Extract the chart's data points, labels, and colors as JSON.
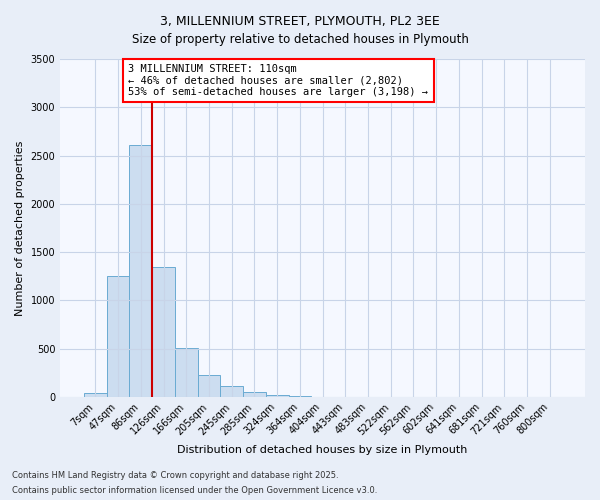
{
  "title1": "3, MILLENNIUM STREET, PLYMOUTH, PL2 3EE",
  "title2": "Size of property relative to detached houses in Plymouth",
  "xlabel": "Distribution of detached houses by size in Plymouth",
  "ylabel": "Number of detached properties",
  "categories": [
    "7sqm",
    "47sqm",
    "86sqm",
    "126sqm",
    "166sqm",
    "205sqm",
    "245sqm",
    "285sqm",
    "324sqm",
    "364sqm",
    "404sqm",
    "443sqm",
    "483sqm",
    "522sqm",
    "562sqm",
    "602sqm",
    "641sqm",
    "681sqm",
    "721sqm",
    "760sqm",
    "800sqm"
  ],
  "values": [
    40,
    1250,
    2610,
    1350,
    510,
    230,
    115,
    50,
    20,
    5,
    0,
    0,
    0,
    0,
    0,
    0,
    0,
    0,
    0,
    0,
    0
  ],
  "bar_color": "#ccddf0",
  "bar_edge_color": "#6aabd2",
  "vline_x": 2.5,
  "vline_color": "#cc0000",
  "ylim": [
    0,
    3500
  ],
  "yticks": [
    0,
    500,
    1000,
    1500,
    2000,
    2500,
    3000,
    3500
  ],
  "annotation_text": "3 MILLENNIUM STREET: 110sqm\n← 46% of detached houses are smaller (2,802)\n53% of semi-detached houses are larger (3,198) →",
  "footer1": "Contains HM Land Registry data © Crown copyright and database right 2025.",
  "footer2": "Contains public sector information licensed under the Open Government Licence v3.0.",
  "bg_color": "#e8eef8",
  "plot_bg_color": "#f5f8ff",
  "grid_color": "#c8d4e8",
  "title_fontsize": 9,
  "subtitle_fontsize": 8.5,
  "tick_fontsize": 7,
  "ylabel_fontsize": 8,
  "xlabel_fontsize": 8,
  "annot_fontsize": 7.5,
  "footer_fontsize": 6
}
